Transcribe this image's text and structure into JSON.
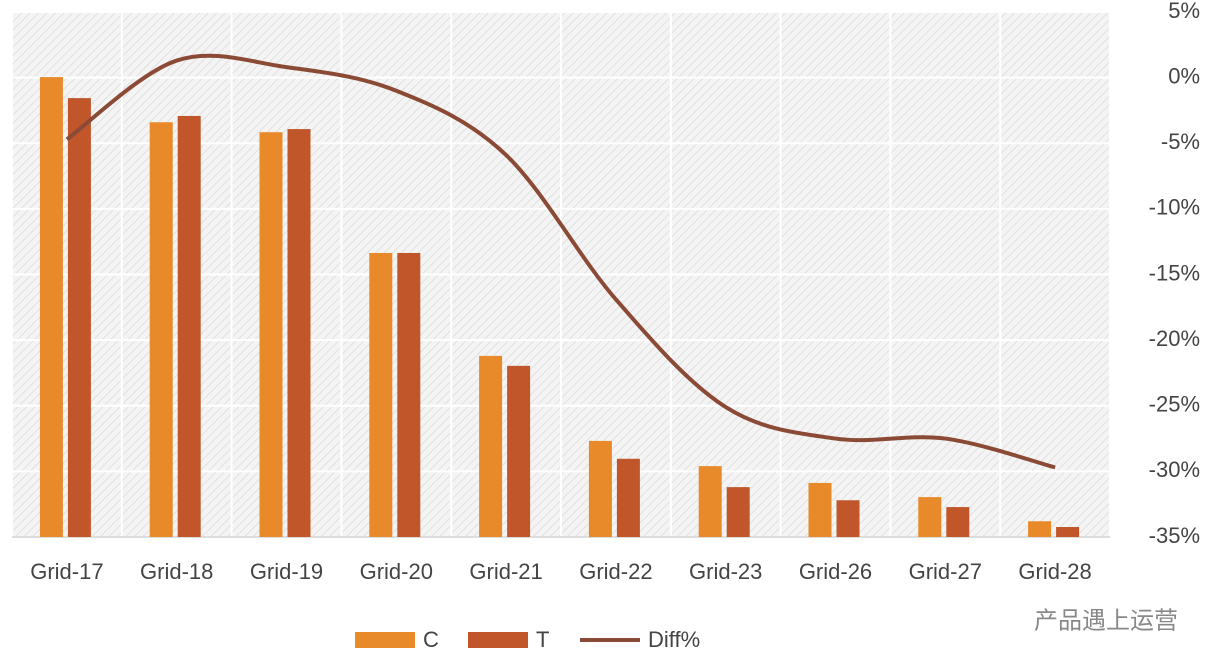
{
  "chart_data": {
    "type": "bar",
    "categories": [
      "Grid-17",
      "Grid-18",
      "Grid-19",
      "Grid-20",
      "Grid-21",
      "Grid-22",
      "Grid-23",
      "Grid-26",
      "Grid-27",
      "Grid-28"
    ],
    "ylim": [
      0,
      100
    ],
    "series": [
      {
        "name": "C",
        "color": "#e8892a",
        "values": [
          87.6,
          79.0,
          77.1,
          54.1,
          34.5,
          18.3,
          13.5,
          10.3,
          7.6,
          3.0
        ]
      },
      {
        "name": "T",
        "color": "#c0562a",
        "values": [
          83.6,
          80.2,
          77.7,
          54.1,
          32.6,
          14.9,
          9.5,
          7.0,
          5.7,
          1.9
        ]
      },
      {
        "name": "Diff%",
        "color": "#8b4a35",
        "type": "line",
        "axis": "y2",
        "values": [
          -4.7,
          1.3,
          0.8,
          -1.0,
          -5.9,
          -16.9,
          -25.1,
          -27.5,
          -27.5,
          -29.7
        ]
      }
    ],
    "y2lim": [
      -35,
      5
    ],
    "y2ticks": [
      {
        "value": 5,
        "label": "5%"
      },
      {
        "value": 0,
        "label": "0%"
      },
      {
        "value": -5,
        "label": "-5%"
      },
      {
        "value": -10,
        "label": "-10%"
      },
      {
        "value": -15,
        "label": "-15%"
      },
      {
        "value": -20,
        "label": "-20%"
      },
      {
        "value": -25,
        "label": "-25%"
      },
      {
        "value": -30,
        "label": "-30%"
      },
      {
        "value": -35,
        "label": "-35%"
      }
    ],
    "grid": true,
    "legend": "bottom",
    "watermark": "产品遇上运营"
  }
}
